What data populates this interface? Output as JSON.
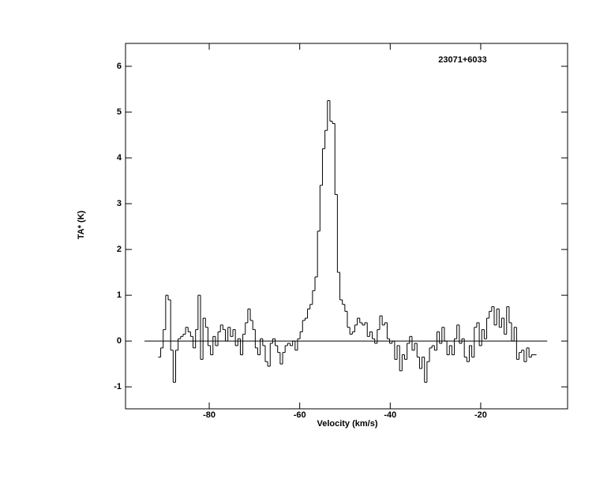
{
  "chart_data": {
    "type": "step",
    "title": "23071+6033",
    "x_label": "Velocity (km/s)",
    "y_label": "TA* (K)",
    "xlim": [
      -98.5,
      -0.8
    ],
    "ylim": [
      -1.48,
      6.5
    ],
    "xticks": [
      -80,
      -60,
      -40,
      -20
    ],
    "yticks": [
      -1,
      0,
      1,
      2,
      3,
      4,
      5,
      6
    ],
    "color": "#000000",
    "baseline": {
      "y": 0,
      "x": [
        -94.3,
        -5.3
      ]
    },
    "x": [
      -91.0,
      -90.45,
      -89.9,
      -89.35,
      -88.8,
      -88.25,
      -87.7,
      -87.15,
      -86.6,
      -86.05,
      -85.5,
      -84.95,
      -84.4,
      -83.85,
      -83.3,
      -82.75,
      -82.2,
      -81.65,
      -81.1,
      -80.55,
      -80.0,
      -79.45,
      -78.9,
      -78.35,
      -77.8,
      -77.25,
      -76.7,
      -76.15,
      -75.6,
      -75.05,
      -74.5,
      -73.95,
      -73.4,
      -72.85,
      -72.3,
      -71.75,
      -71.2,
      -70.65,
      -70.1,
      -69.55,
      -69.0,
      -68.45,
      -67.9,
      -67.35,
      -66.8,
      -66.25,
      -65.7,
      -65.15,
      -64.6,
      -64.05,
      -63.5,
      -62.95,
      -62.4,
      -61.85,
      -61.3,
      -60.75,
      -60.2,
      -59.65,
      -59.1,
      -58.55,
      -58.0,
      -57.45,
      -56.9,
      -56.35,
      -55.8,
      -55.25,
      -54.7,
      -54.15,
      -53.6,
      -53.05,
      -52.5,
      -51.95,
      -51.4,
      -50.85,
      -50.3,
      -49.75,
      -49.2,
      -48.65,
      -48.1,
      -47.55,
      -47.0,
      -46.45,
      -45.9,
      -45.35,
      -44.8,
      -44.25,
      -43.7,
      -43.15,
      -42.6,
      -42.05,
      -41.5,
      -40.95,
      -40.4,
      -39.85,
      -39.3,
      -38.75,
      -38.2,
      -37.65,
      -37.1,
      -36.55,
      -36.0,
      -35.45,
      -34.9,
      -34.35,
      -33.8,
      -33.25,
      -32.7,
      -32.15,
      -31.6,
      -31.05,
      -30.5,
      -29.95,
      -29.4,
      -28.85,
      -28.3,
      -27.75,
      -27.2,
      -26.65,
      -26.1,
      -25.55,
      -25.0,
      -24.45,
      -23.9,
      -23.35,
      -22.8,
      -22.25,
      -21.7,
      -21.15,
      -20.6,
      -20.05,
      -19.5,
      -18.95,
      -18.4,
      -17.85,
      -17.3,
      -16.75,
      -16.2,
      -15.65,
      -15.1,
      -14.55,
      -14.0,
      -13.45,
      -12.9,
      -12.35,
      -11.8,
      -11.25,
      -10.7,
      -10.15,
      -9.6,
      -9.05,
      -8.5,
      -7.95
    ],
    "values": [
      -0.35,
      -0.15,
      0.25,
      1.0,
      0.9,
      -0.2,
      -0.9,
      -0.2,
      0.05,
      0.1,
      0.15,
      0.3,
      0.2,
      0.1,
      -0.15,
      0.25,
      1.0,
      -0.4,
      0.5,
      0.3,
      -0.1,
      -0.3,
      0.1,
      -0.1,
      0.2,
      0.35,
      0.25,
      0.0,
      0.3,
      0.1,
      0.25,
      -0.1,
      0.05,
      -0.3,
      0.15,
      0.4,
      0.7,
      0.45,
      0.25,
      -0.15,
      -0.3,
      0.05,
      -0.1,
      -0.45,
      -0.55,
      -0.05,
      0.05,
      -0.1,
      -0.25,
      -0.5,
      -0.25,
      -0.1,
      -0.05,
      -0.1,
      0.0,
      -0.2,
      0.05,
      0.2,
      0.45,
      0.5,
      0.7,
      0.8,
      1.1,
      1.4,
      2.4,
      3.4,
      4.2,
      4.6,
      5.25,
      4.8,
      4.75,
      3.2,
      1.5,
      0.9,
      0.8,
      0.65,
      0.3,
      0.15,
      0.2,
      0.35,
      0.5,
      0.4,
      0.35,
      0.4,
      0.1,
      0.2,
      0.05,
      -0.05,
      0.25,
      0.55,
      0.35,
      0.4,
      0.05,
      -0.05,
      0.0,
      -0.4,
      -0.1,
      -0.65,
      -0.3,
      -0.4,
      -0.05,
      0.1,
      -0.2,
      -0.05,
      -0.35,
      -0.6,
      -0.35,
      -0.9,
      -0.45,
      -0.15,
      -0.1,
      -0.2,
      0.2,
      -0.05,
      0.3,
      0.0,
      -0.3,
      -0.1,
      -0.3,
      0.05,
      0.35,
      -0.05,
      0.05,
      -0.35,
      -0.45,
      -0.1,
      -0.35,
      0.3,
      0.4,
      -0.1,
      0.25,
      0.05,
      0.5,
      0.65,
      0.75,
      0.35,
      0.7,
      0.3,
      0.5,
      0.15,
      0.75,
      0.4,
      0.0,
      0.3,
      -0.4,
      -0.25,
      -0.2,
      -0.45,
      -0.15,
      -0.35,
      -0.3,
      -0.3
    ]
  }
}
